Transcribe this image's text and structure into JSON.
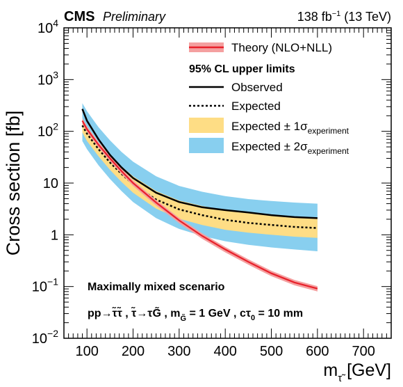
{
  "header": {
    "experiment": "CMS",
    "tag": "Preliminary",
    "lumi_value": "138 fb",
    "lumi_exp": "−1",
    "energy": " (13 TeV)"
  },
  "legend": {
    "theory": "Theory (NLO+NLL)",
    "heading": "95% CL upper limits",
    "observed": "Observed",
    "expected": "Expected",
    "band1_prefix": "Expected ± 1σ",
    "band1_sub": "experiment",
    "band2_prefix": "Expected ± 2σ",
    "band2_sub": "experiment"
  },
  "annotations": {
    "scenario": "Maximally mixed scenario",
    "process": "pp→τ̃τ̃ ,  τ̃→τG̃ ,  m",
    "mass_sub": "G̃",
    "mass_value": " = 1 GeV , cτ",
    "ctau_sub": "0",
    "ctau_value": " = 10 mm"
  },
  "axes": {
    "ylabel": "Cross section [fb]",
    "xlabel_main": "m",
    "xlabel_sub": "τ̃",
    "xlabel_unit": " [GeV]"
  },
  "chart_data": {
    "type": "line",
    "xlim": [
      50,
      760
    ],
    "ylim": [
      0.01,
      10000
    ],
    "yscale": "log",
    "x_ticks": [
      100,
      200,
      300,
      400,
      500,
      600,
      700
    ],
    "y_ticks": [
      {
        "value": 0.01,
        "base": "10",
        "exp": "−2"
      },
      {
        "value": 0.1,
        "base": "10",
        "exp": "−1"
      },
      {
        "value": 1,
        "base": "1",
        "exp": ""
      },
      {
        "value": 10,
        "base": "10",
        "exp": ""
      },
      {
        "value": 100,
        "base": "10",
        "exp": "2"
      },
      {
        "value": 1000,
        "base": "10",
        "exp": "3"
      },
      {
        "value": 10000,
        "base": "10",
        "exp": "4"
      }
    ],
    "grid": false,
    "legend_position": "top-right",
    "series": [
      {
        "name": "Theory (NLO+NLL)",
        "color": "#e8202a",
        "band_color": "#f4a0a0",
        "x": [
          90,
          100,
          125,
          150,
          175,
          200,
          250,
          300,
          350,
          400,
          450,
          500,
          550,
          600
        ],
        "y": [
          160,
          110,
          55,
          30,
          17,
          10,
          4.2,
          1.9,
          0.95,
          0.52,
          0.3,
          0.18,
          0.12,
          0.091
        ],
        "band_rel": 0.12
      },
      {
        "name": "Observed",
        "color": "#000000",
        "x": [
          90,
          100,
          125,
          150,
          175,
          200,
          250,
          300,
          350,
          400,
          450,
          500,
          550,
          600
        ],
        "y": [
          270,
          160,
          70,
          35,
          20,
          12.5,
          6.5,
          4.3,
          3.4,
          3.0,
          2.7,
          2.4,
          2.2,
          2.1
        ]
      },
      {
        "name": "Expected",
        "color": "#000000",
        "dashed": true,
        "x": [
          90,
          100,
          125,
          150,
          175,
          200,
          250,
          300,
          350,
          400,
          450,
          500,
          550,
          600
        ],
        "y": [
          130,
          90,
          45,
          25,
          15,
          9.5,
          4.8,
          3.1,
          2.4,
          1.95,
          1.7,
          1.55,
          1.42,
          1.35
        ]
      },
      {
        "name": "Expected ± 1σexperiment",
        "color": "#fedd85",
        "x": [
          90,
          100,
          125,
          150,
          175,
          200,
          250,
          300,
          350,
          400,
          450,
          500,
          550,
          600
        ],
        "low": [
          95,
          65,
          33,
          18,
          10.5,
          6.5,
          3.2,
          2.05,
          1.55,
          1.25,
          1.1,
          1.0,
          0.92,
          0.87
        ],
        "high": [
          180,
          125,
          62,
          35,
          21,
          13.5,
          7.0,
          4.6,
          3.6,
          3.0,
          2.65,
          2.4,
          2.22,
          2.1
        ]
      },
      {
        "name": "Expected ± 2σexperiment",
        "color": "#88cfef",
        "x": [
          90,
          100,
          125,
          150,
          175,
          200,
          250,
          300,
          350,
          400,
          450,
          500,
          550,
          600
        ],
        "low": [
          65,
          45,
          22,
          12,
          7.0,
          4.3,
          2.1,
          1.3,
          0.95,
          0.75,
          0.64,
          0.57,
          0.52,
          0.48
        ],
        "high": [
          350,
          245,
          120,
          67,
          40,
          26,
          13.5,
          8.8,
          6.8,
          5.6,
          4.9,
          4.5,
          4.2,
          4.0
        ]
      }
    ]
  }
}
